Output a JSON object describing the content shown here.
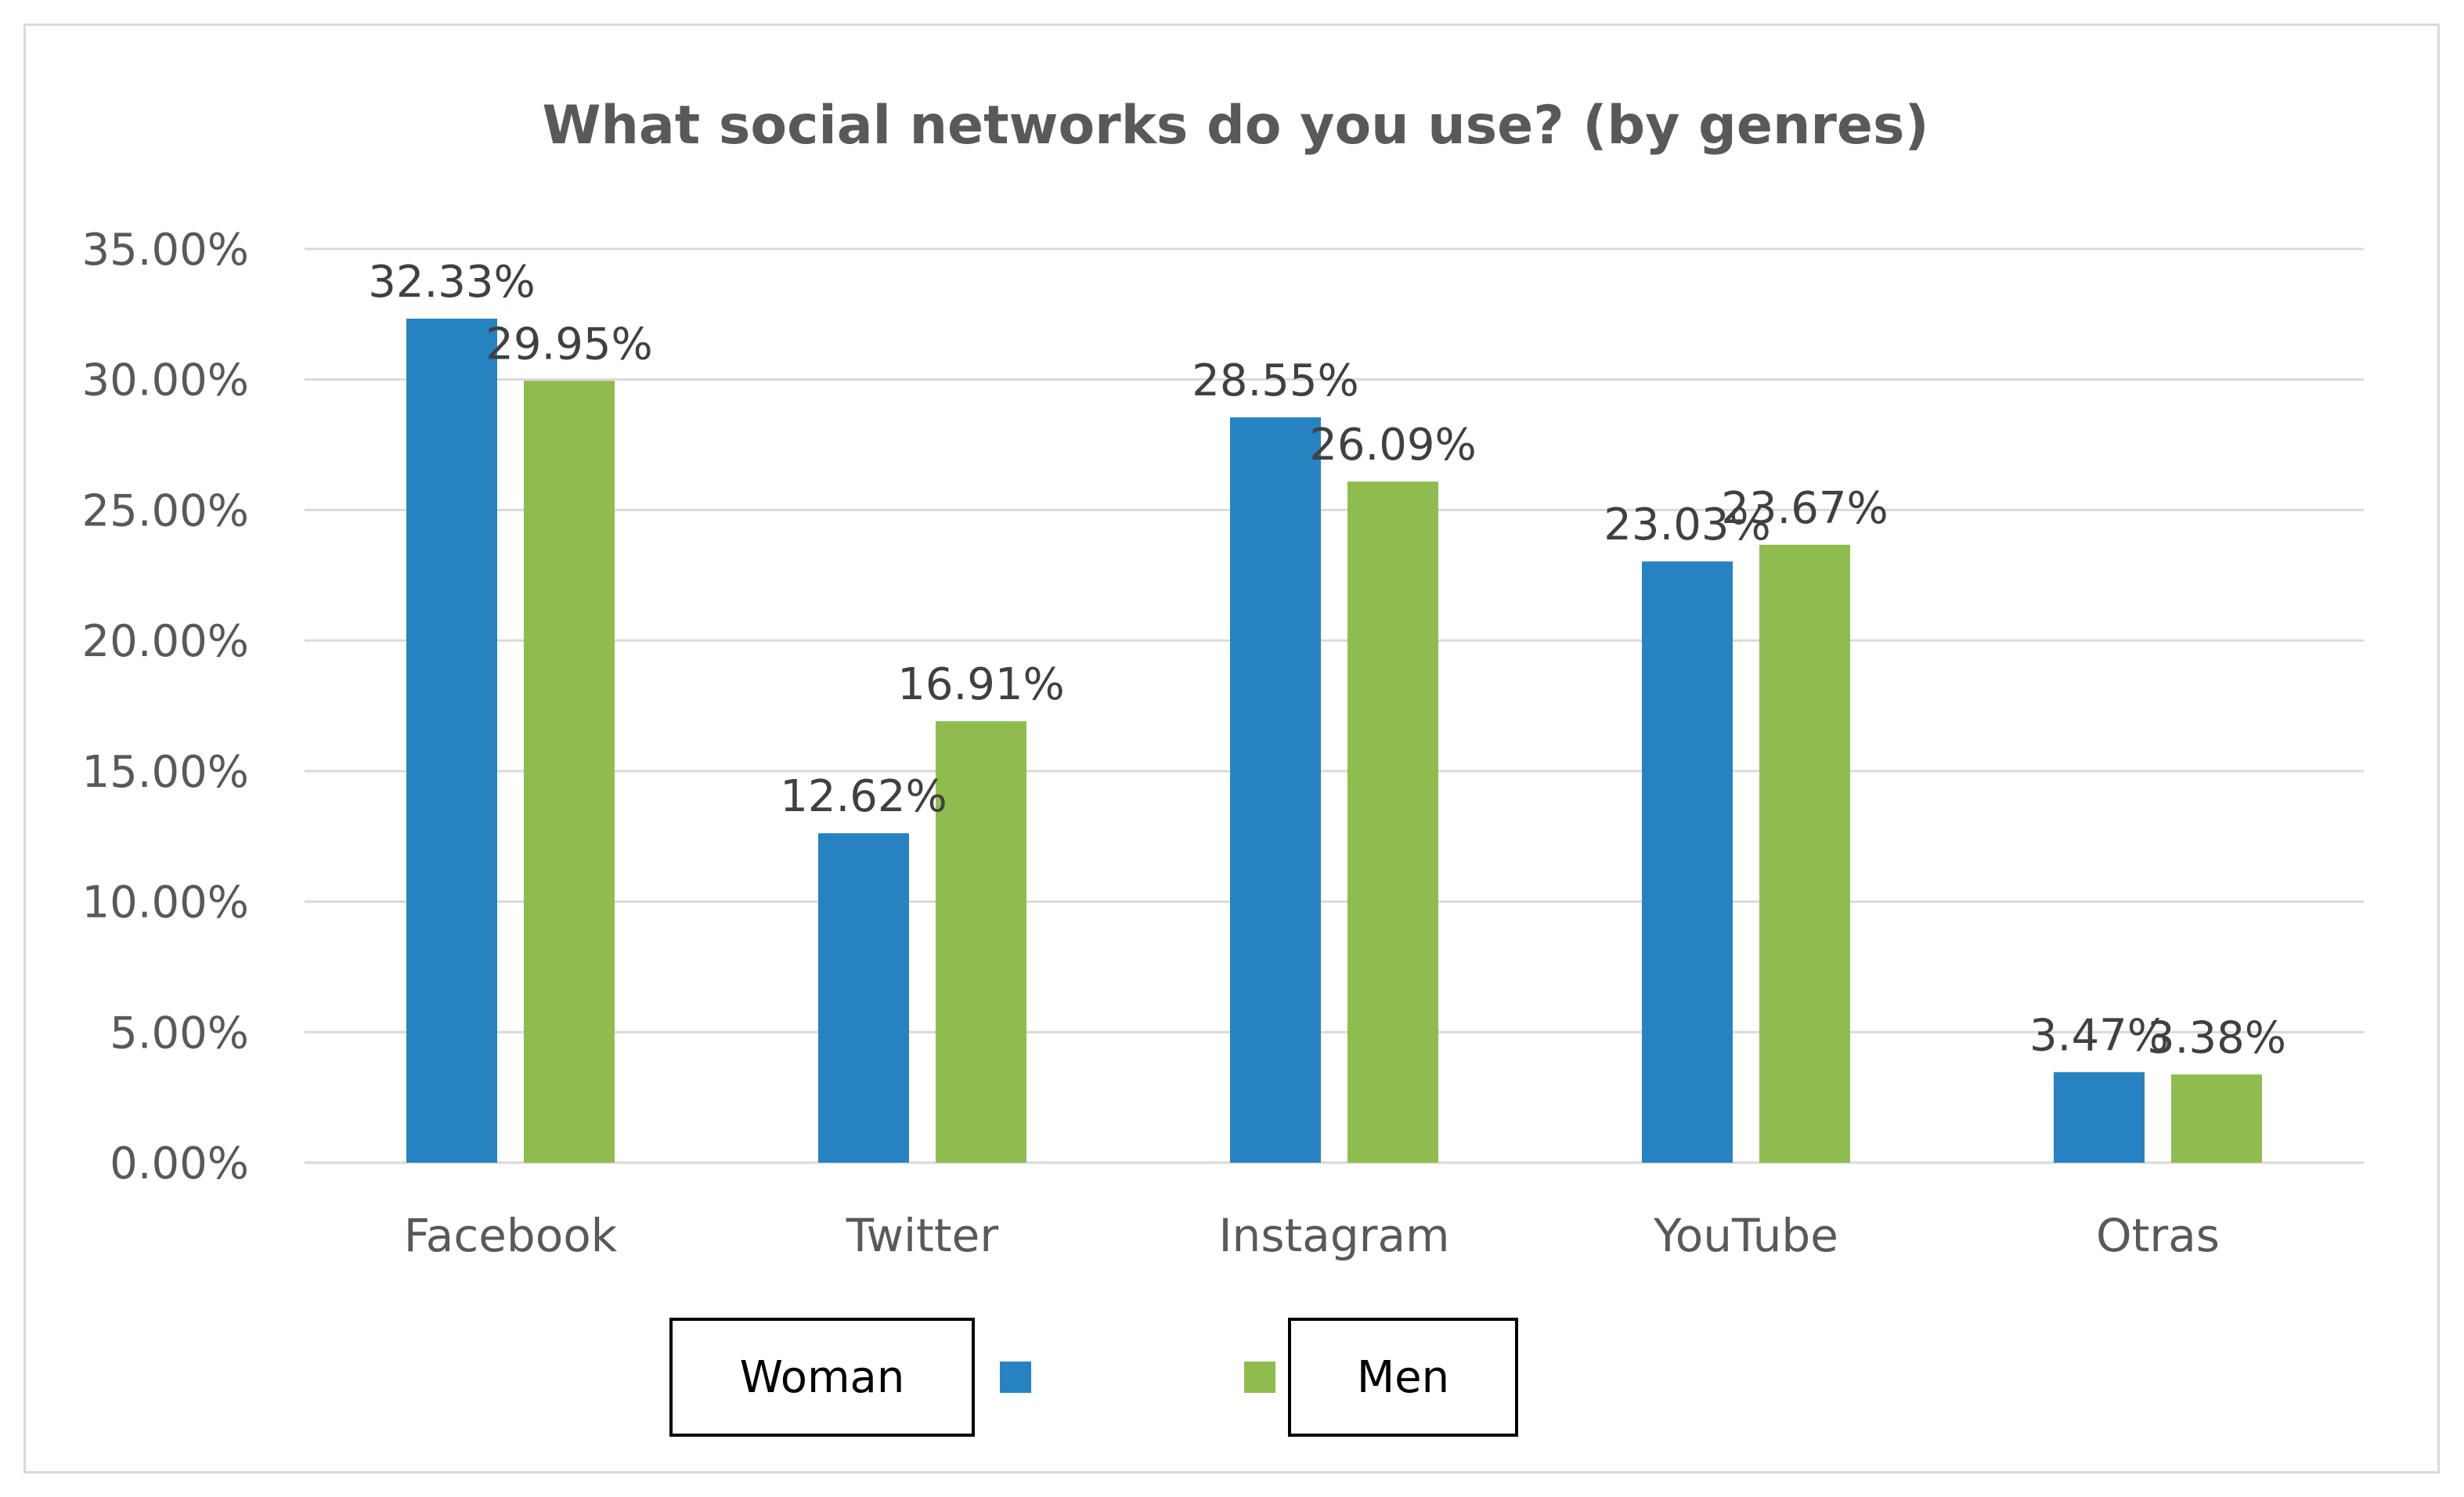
{
  "chart_data": {
    "type": "bar",
    "title": "What social networks do you use? (by genres)",
    "xlabel": "",
    "ylabel": "",
    "categories": [
      "Facebook",
      "Twitter",
      "Instagram",
      "YouTube",
      "Otras"
    ],
    "series": [
      {
        "name": "Woman",
        "color": "#2782c2",
        "values": [
          32.33,
          12.62,
          28.55,
          23.03,
          3.47
        ],
        "labels": [
          "32.33%",
          "12.62%",
          "28.55%",
          "23.03%",
          "3.47%"
        ]
      },
      {
        "name": "Men",
        "color": "#8fbc4f",
        "values": [
          29.95,
          16.91,
          26.09,
          23.67,
          3.38
        ],
        "labels": [
          "29.95%",
          "16.91%",
          "26.09%",
          "23.67%",
          "3.38%"
        ]
      }
    ],
    "ylim": [
      0,
      35
    ],
    "yticks": [
      0,
      5,
      10,
      15,
      20,
      25,
      30,
      35
    ],
    "ytick_labels": [
      "0.00%",
      "5.00%",
      "10.00%",
      "15.00%",
      "20.00%",
      "25.00%",
      "30.00%",
      "35.00%"
    ],
    "grid": true,
    "legend_position": "bottom",
    "colors": {
      "title": "#595959",
      "tick_text": "#595959",
      "data_label": "#404040",
      "gridline": "#d9d9d9",
      "frame": "#d9d9d9"
    }
  }
}
